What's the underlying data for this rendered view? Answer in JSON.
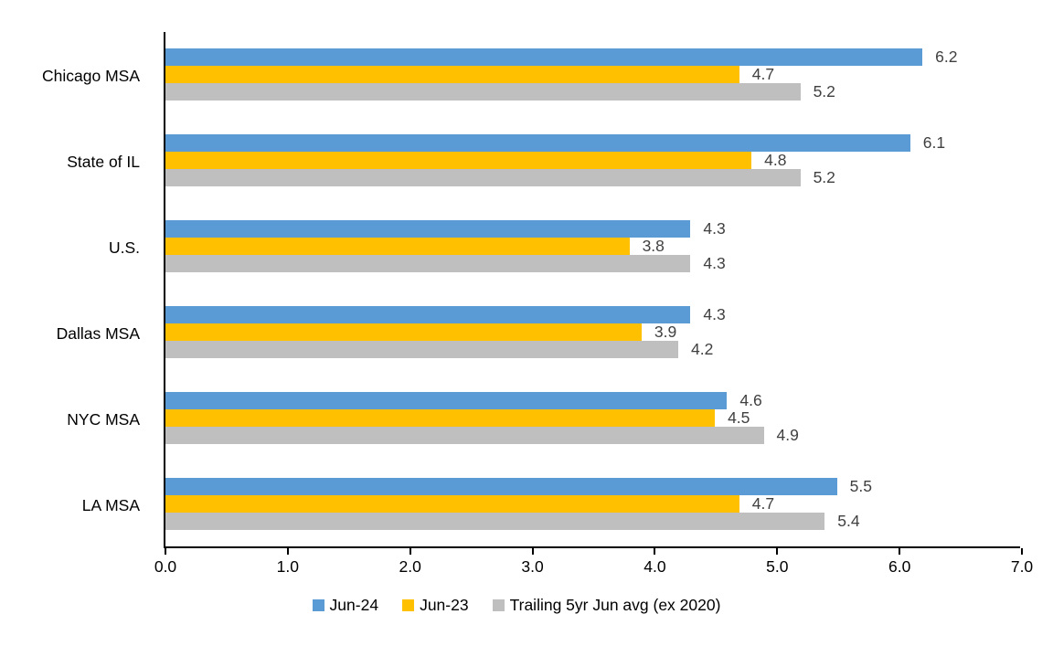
{
  "chart_data": {
    "type": "bar",
    "orientation": "horizontal",
    "title": "",
    "xlabel": "",
    "ylabel": "",
    "xlim": [
      0,
      7
    ],
    "x_ticks": [
      "0.0",
      "1.0",
      "2.0",
      "3.0",
      "4.0",
      "5.0",
      "6.0",
      "7.0"
    ],
    "grid": false,
    "legend_position": "bottom",
    "categories": [
      "Chicago MSA",
      "State of IL",
      "U.S.",
      "Dallas MSA",
      "NYC MSA",
      "LA MSA"
    ],
    "series": [
      {
        "name": "Jun-24",
        "color": "#5B9BD5",
        "values": [
          6.2,
          6.1,
          4.3,
          4.3,
          4.6,
          5.5
        ]
      },
      {
        "name": "Jun-23",
        "color": "#FFC000",
        "values": [
          4.7,
          4.8,
          3.8,
          3.9,
          4.5,
          4.7
        ]
      },
      {
        "name": "Trailing 5yr Jun avg (ex 2020)",
        "color": "#BFBFBF",
        "values": [
          5.2,
          5.2,
          4.3,
          4.2,
          4.9,
          5.4
        ]
      }
    ],
    "value_labels_shown": true,
    "value_label_decimals": 1
  },
  "colors": {
    "background": "#FFFFFF",
    "axis": "#000000",
    "category_label": "#000000",
    "value_label": "#404040"
  }
}
